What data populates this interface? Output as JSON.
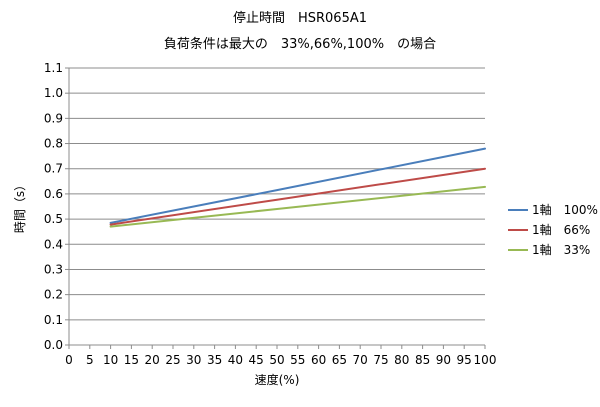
{
  "chart_data": {
    "type": "line",
    "title": "停止時間　HSR065A1",
    "subtitle": "負荷条件は最大の　33%,66%,100%　の場合",
    "xlabel": "速度(%)",
    "ylabel": "時間（s）",
    "xlim": [
      0,
      100
    ],
    "ylim": [
      0.0,
      1.1
    ],
    "x_ticks": [
      "0",
      "5",
      "10",
      "15",
      "20",
      "25",
      "30",
      "35",
      "40",
      "45",
      "50",
      "55",
      "60",
      "65",
      "70",
      "75",
      "80",
      "85",
      "90",
      "95",
      "100"
    ],
    "y_ticks": [
      "0.0",
      "0.1",
      "0.2",
      "0.3",
      "0.4",
      "0.5",
      "0.6",
      "0.7",
      "0.8",
      "0.9",
      "1.0",
      "1.1"
    ],
    "grid": {
      "horizontal": true,
      "vertical": false
    },
    "legend_position": "right",
    "series": [
      {
        "name": "1軸　100%",
        "color": "#4a7ebb",
        "x": [
          10,
          50,
          100
        ],
        "y": [
          0.485,
          0.615,
          0.78
        ]
      },
      {
        "name": "1軸　66%",
        "color": "#be4b48",
        "x": [
          10,
          50,
          100
        ],
        "y": [
          0.478,
          0.577,
          0.7
        ]
      },
      {
        "name": "1軸　33%",
        "color": "#98b954",
        "x": [
          10,
          50,
          100
        ],
        "y": [
          0.47,
          0.54,
          0.628
        ]
      }
    ]
  }
}
